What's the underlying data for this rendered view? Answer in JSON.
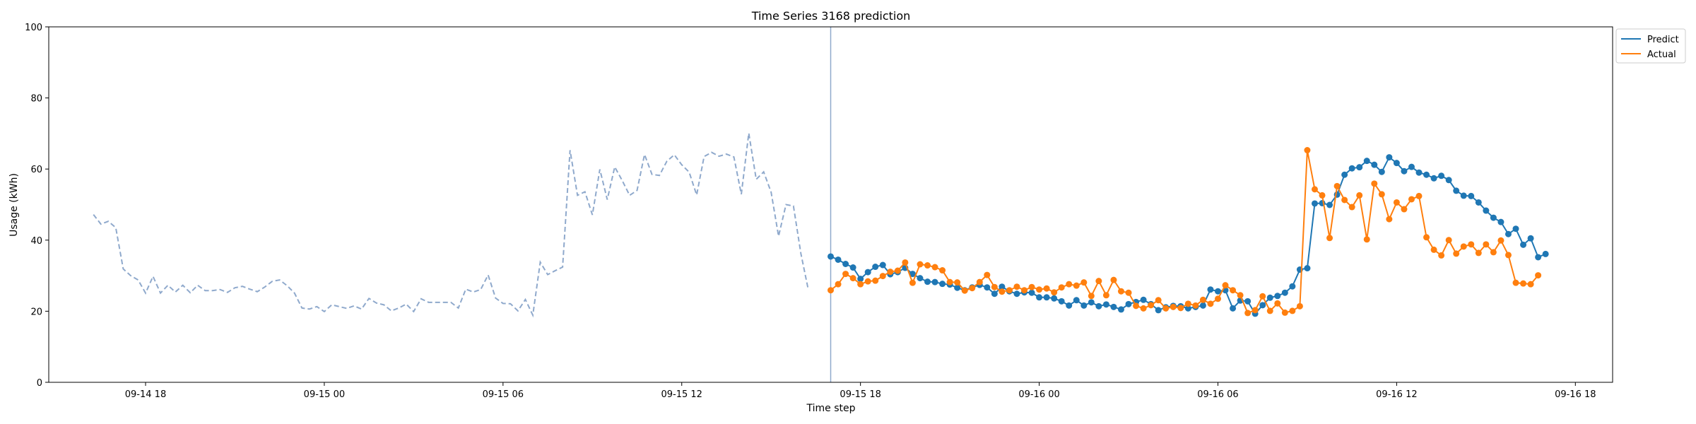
{
  "chart_data": {
    "type": "line",
    "title": "Time Series 3168 prediction",
    "xlabel": "Time step",
    "ylabel": "Usage (kWh)",
    "ylim": [
      0,
      100
    ],
    "xlim": [
      "09-14 14:45",
      "09-16 19:15"
    ],
    "yticks": [
      0,
      20,
      40,
      60,
      80,
      100
    ],
    "xticks": [
      {
        "label": "09-14 18",
        "time": "09-14 18:00"
      },
      {
        "label": "09-15 00",
        "time": "09-15 00:00"
      },
      {
        "label": "09-15 06",
        "time": "09-15 06:00"
      },
      {
        "label": "09-15 12",
        "time": "09-15 12:00"
      },
      {
        "label": "09-15 18",
        "time": "09-15 18:00"
      },
      {
        "label": "09-16 00",
        "time": "09-16 00:00"
      },
      {
        "label": "09-16 06",
        "time": "09-16 06:00"
      },
      {
        "label": "09-16 12",
        "time": "09-16 12:00"
      },
      {
        "label": "09-16 18",
        "time": "09-16 18:00"
      }
    ],
    "grid": false,
    "legend_position": "outside top-right",
    "colors": {
      "history": "#8fa9cc",
      "predict": "#1f77b4",
      "actual": "#ff7f0e",
      "divider": "#8fa9cc"
    },
    "forecast_start": "09-15 17:00",
    "history": {
      "start": "09-14 16:15",
      "interval_minutes": 15,
      "values": [
        47.2,
        44.5,
        45.3,
        43.5,
        31.9,
        30,
        28.8,
        25.1,
        29.8,
        25.1,
        27.3,
        25.4,
        27.3,
        25.2,
        27.3,
        25.8,
        25.8,
        26.1,
        25.3,
        26.6,
        27,
        26.2,
        25.5,
        26.8,
        28.4,
        28.8,
        27.2,
        25.1,
        20.9,
        20.6,
        21.3,
        19.9,
        21.8,
        21.3,
        20.8,
        21.5,
        20.6,
        23.6,
        22.3,
        21.8,
        20.1,
        20.9,
        22,
        19.9,
        23.5,
        22.5,
        22.5,
        22.5,
        22.5,
        20.9,
        26.2,
        25.4,
        26.1,
        30.2,
        23.7,
        22.2,
        22.1,
        20.1,
        23.3,
        18.9,
        33.8,
        30.3,
        31.4,
        32.4,
        65.3,
        52.6,
        53.6,
        47.1,
        59.9,
        51.4,
        60.6,
        56.8,
        52.6,
        54,
        64.1,
        58.5,
        58.2,
        62.2,
        64,
        61.2,
        59.1,
        52.7,
        63.5,
        64.7,
        63.6,
        64.2,
        63.4,
        52.9,
        70.1,
        57.1,
        59.2,
        53.5,
        41.1,
        50,
        49.6,
        36.2,
        26
      ]
    },
    "series": [
      {
        "name": "Predict",
        "start": "09-15 17:00",
        "interval_minutes": 15,
        "values": [
          35.4,
          34.5,
          33.3,
          32.3,
          29.1,
          31,
          32.5,
          33,
          30.4,
          31,
          32.2,
          30.5,
          29.3,
          28.3,
          28.2,
          27.7,
          27.5,
          26.6,
          25.9,
          26.7,
          27.4,
          26.7,
          24.9,
          26.9,
          25.6,
          24.9,
          25.3,
          25.2,
          23.9,
          23.9,
          23.6,
          22.8,
          21.6,
          23.1,
          21.6,
          22.5,
          21.4,
          21.9,
          21.2,
          20.5,
          22,
          22.6,
          23.2,
          22,
          20.3,
          21.1,
          21.5,
          21.4,
          20.8,
          21.2,
          21.6,
          26.1,
          25.6,
          25.9,
          20.8,
          23,
          22.8,
          19.3,
          21.7,
          23.8,
          24.3,
          25.2,
          27,
          31.7,
          32.1,
          50.3,
          50.4,
          49.9,
          52.8,
          58.4,
          60.2,
          60.5,
          62.3,
          61.2,
          59.2,
          63.3,
          61.7,
          59.4,
          60.6,
          59,
          58.4,
          57.4,
          58.1,
          56.9,
          53.9,
          52.5,
          52.4,
          50.6,
          48.3,
          46.3,
          45.1,
          41.7,
          43.2,
          38.7,
          40.5,
          35.2,
          36.1
        ]
      },
      {
        "name": "Actual",
        "start": "09-15 17:00",
        "interval_minutes": 15,
        "values": [
          25.9,
          27.6,
          30.5,
          29.3,
          27.6,
          28.4,
          28.6,
          29.9,
          31.1,
          31.4,
          33.7,
          28,
          33.2,
          32.9,
          32.4,
          31.5,
          28.2,
          28.1,
          25.8,
          26.5,
          28.2,
          30.2,
          26.8,
          25.5,
          25.9,
          26.9,
          25.9,
          26.8,
          26.1,
          26.4,
          25.3,
          26.7,
          27.6,
          27.2,
          28.1,
          24.3,
          28.5,
          24.5,
          28.8,
          25.6,
          25.2,
          21.5,
          20.8,
          21.7,
          23.1,
          20.8,
          21.2,
          20.9,
          22.1,
          21.6,
          23.2,
          22.1,
          23.5,
          27.3,
          25.9,
          24.5,
          19.5,
          20.3,
          24.2,
          20.1,
          22.2,
          19.6,
          20.1,
          21.4,
          65.3,
          54.3,
          52.6,
          40.6,
          55.2,
          51.3,
          49.3,
          52.6,
          40.2,
          55.9,
          52.9,
          45.9,
          50.6,
          48.7,
          51.5,
          52.4,
          40.8,
          37.3,
          35.7,
          40,
          36.2,
          38.2,
          38.8,
          36.4,
          38.8,
          36.6,
          39.9,
          35.8,
          28,
          27.8,
          27.6,
          30.1
        ]
      }
    ]
  }
}
